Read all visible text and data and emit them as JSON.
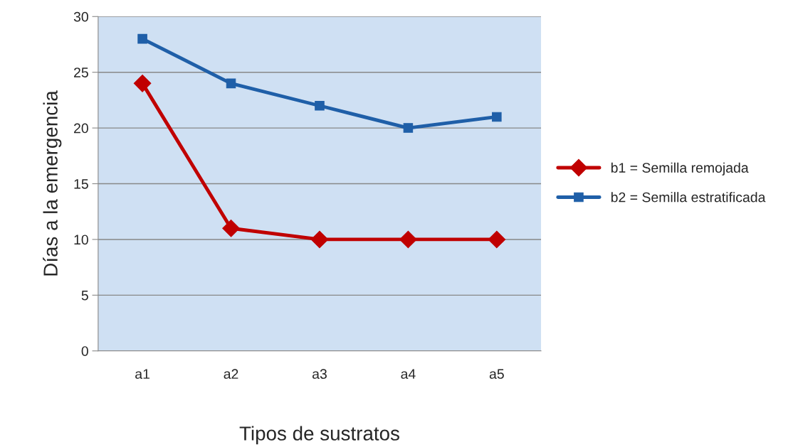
{
  "chart_data": {
    "type": "line",
    "xlabel": "Tipos de sustratos",
    "ylabel": "Días a la emergencia",
    "categories": [
      "a1",
      "a2",
      "a3",
      "a4",
      "a5"
    ],
    "series": [
      {
        "name": "b1 = Semilla remojada",
        "color": "#c00000",
        "marker": "diamond",
        "values": [
          24,
          11,
          10,
          10,
          10
        ]
      },
      {
        "name": "b2 = Semilla estratificada",
        "color": "#1f5fa8",
        "marker": "square",
        "values": [
          28,
          24,
          22,
          20,
          21
        ]
      }
    ],
    "ylim": [
      0,
      30
    ],
    "yticks": [
      0,
      5,
      10,
      15,
      20,
      25,
      30
    ],
    "grid": "y",
    "legend": "right",
    "line_style": "solid"
  }
}
